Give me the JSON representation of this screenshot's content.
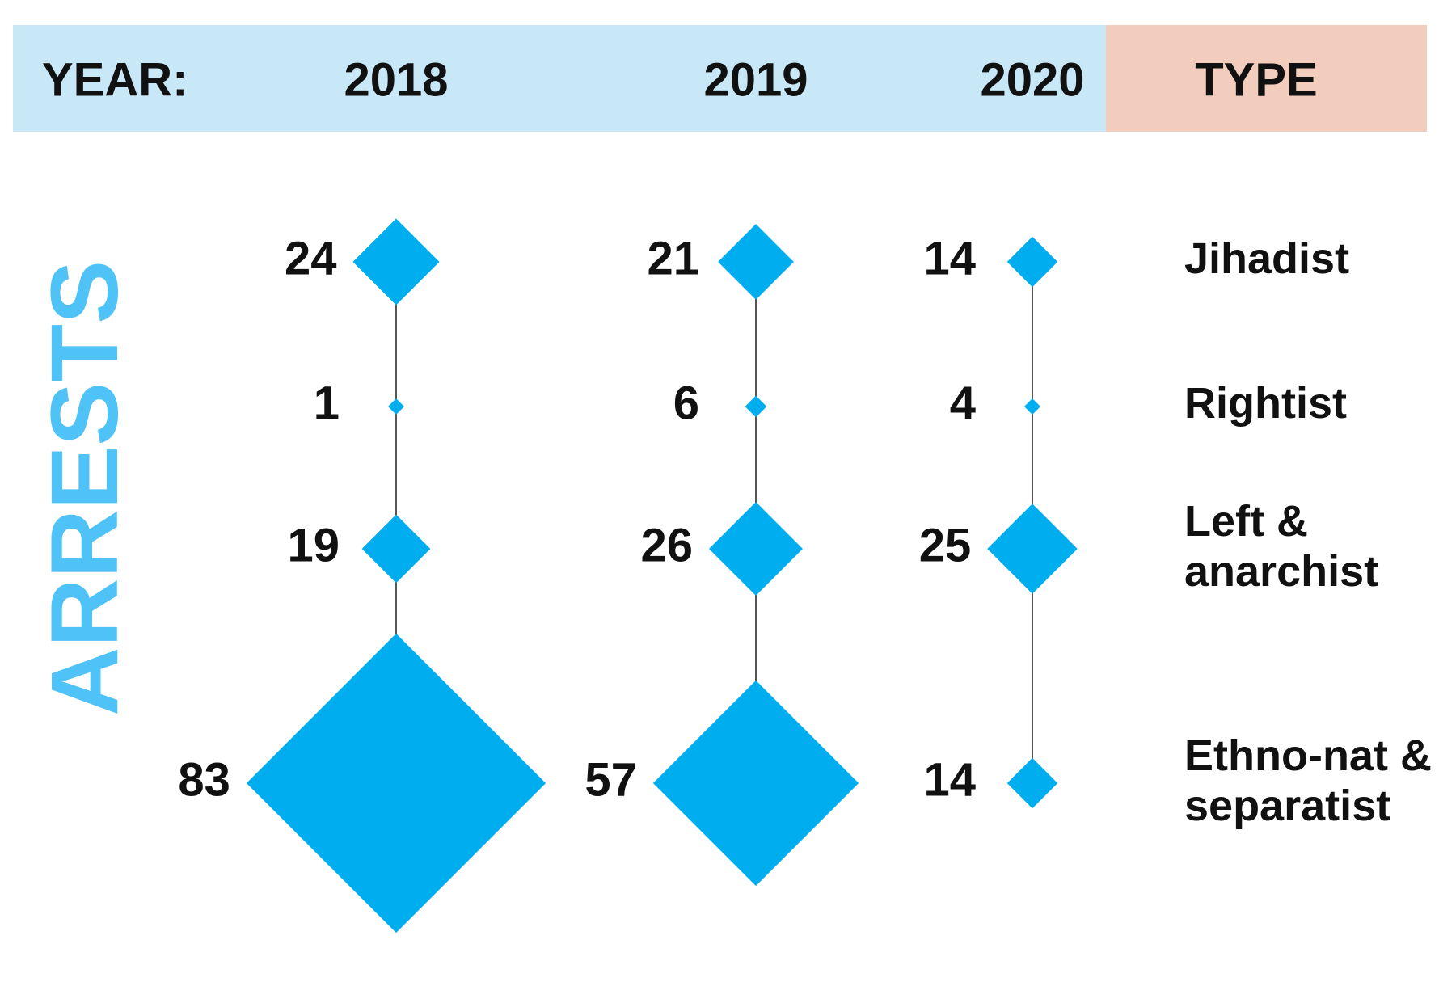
{
  "chart_data": {
    "type": "diamond",
    "header_label": "YEAR:",
    "category_header": "TYPE",
    "y_label": "ARRESTS",
    "categories": [
      "Jihadist",
      "Rightist",
      "Left & anarchist",
      "Ethno-nat & separatist"
    ],
    "color": "#00aeef",
    "series": [
      {
        "name": "2018",
        "values": [
          24,
          1,
          19,
          83
        ]
      },
      {
        "name": "2019",
        "values": [
          21,
          6,
          26,
          57
        ]
      },
      {
        "name": "2020",
        "values": [
          14,
          4,
          25,
          14
        ]
      }
    ]
  }
}
